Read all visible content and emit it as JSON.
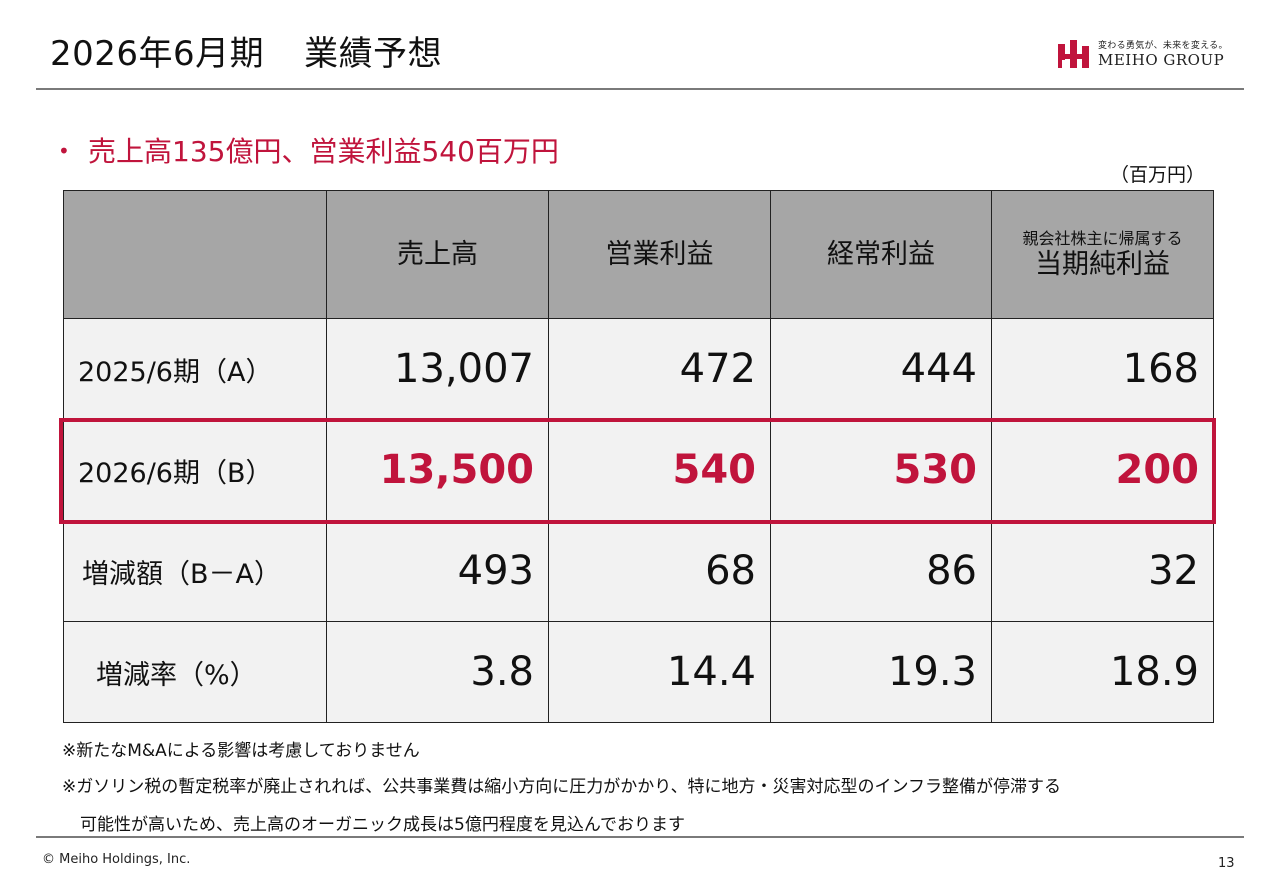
{
  "header": {
    "title_main": "2026年6月期",
    "title_sub": "業績予想"
  },
  "logo": {
    "tagline": "変わる勇気が、未来を変える。",
    "name": "MEIHO GROUP",
    "mark_icon": "meiho-logo-icon",
    "mark_color": "#c0143c"
  },
  "bullet": {
    "text": "売上高135億円、営業利益540百万円",
    "color": "#c0143c"
  },
  "table": {
    "unit": "（百万円）",
    "columns": [
      {
        "label": "売上高"
      },
      {
        "label": "営業利益"
      },
      {
        "label": "経常利益"
      },
      {
        "sub": "親会社株主に帰属する",
        "label": "当期純利益"
      }
    ],
    "rows": [
      {
        "label": "2025/6期（A）",
        "values": [
          "13,007",
          "472",
          "444",
          "168"
        ]
      },
      {
        "label": "2026/6期（B）",
        "values": [
          "13,500",
          "540",
          "530",
          "200"
        ],
        "highlight": true
      },
      {
        "label": "増減額（B－A）",
        "values": [
          "493",
          "68",
          "86",
          "32"
        ]
      },
      {
        "label": "増減率（%）",
        "values": [
          "3.8",
          "14.4",
          "19.3",
          "18.9"
        ]
      }
    ],
    "highlight_color": "#c0143c",
    "header_bg": "#a6a6a6",
    "cell_bg": "#f2f2f2"
  },
  "notes": {
    "n1": "※新たなM&Aによる影響は考慮しておりません",
    "n2": "※ガソリン税の暫定税率が廃止されれば、公共事業費は縮小方向に圧力がかかり、特に地方・災害対応型のインフラ整備が停滞する",
    "n3": "可能性が高いため、売上高のオーガニック成長は5億円程度を見込んでおります"
  },
  "footer": {
    "copyright": "© Meiho Holdings, Inc.",
    "page": "13"
  }
}
